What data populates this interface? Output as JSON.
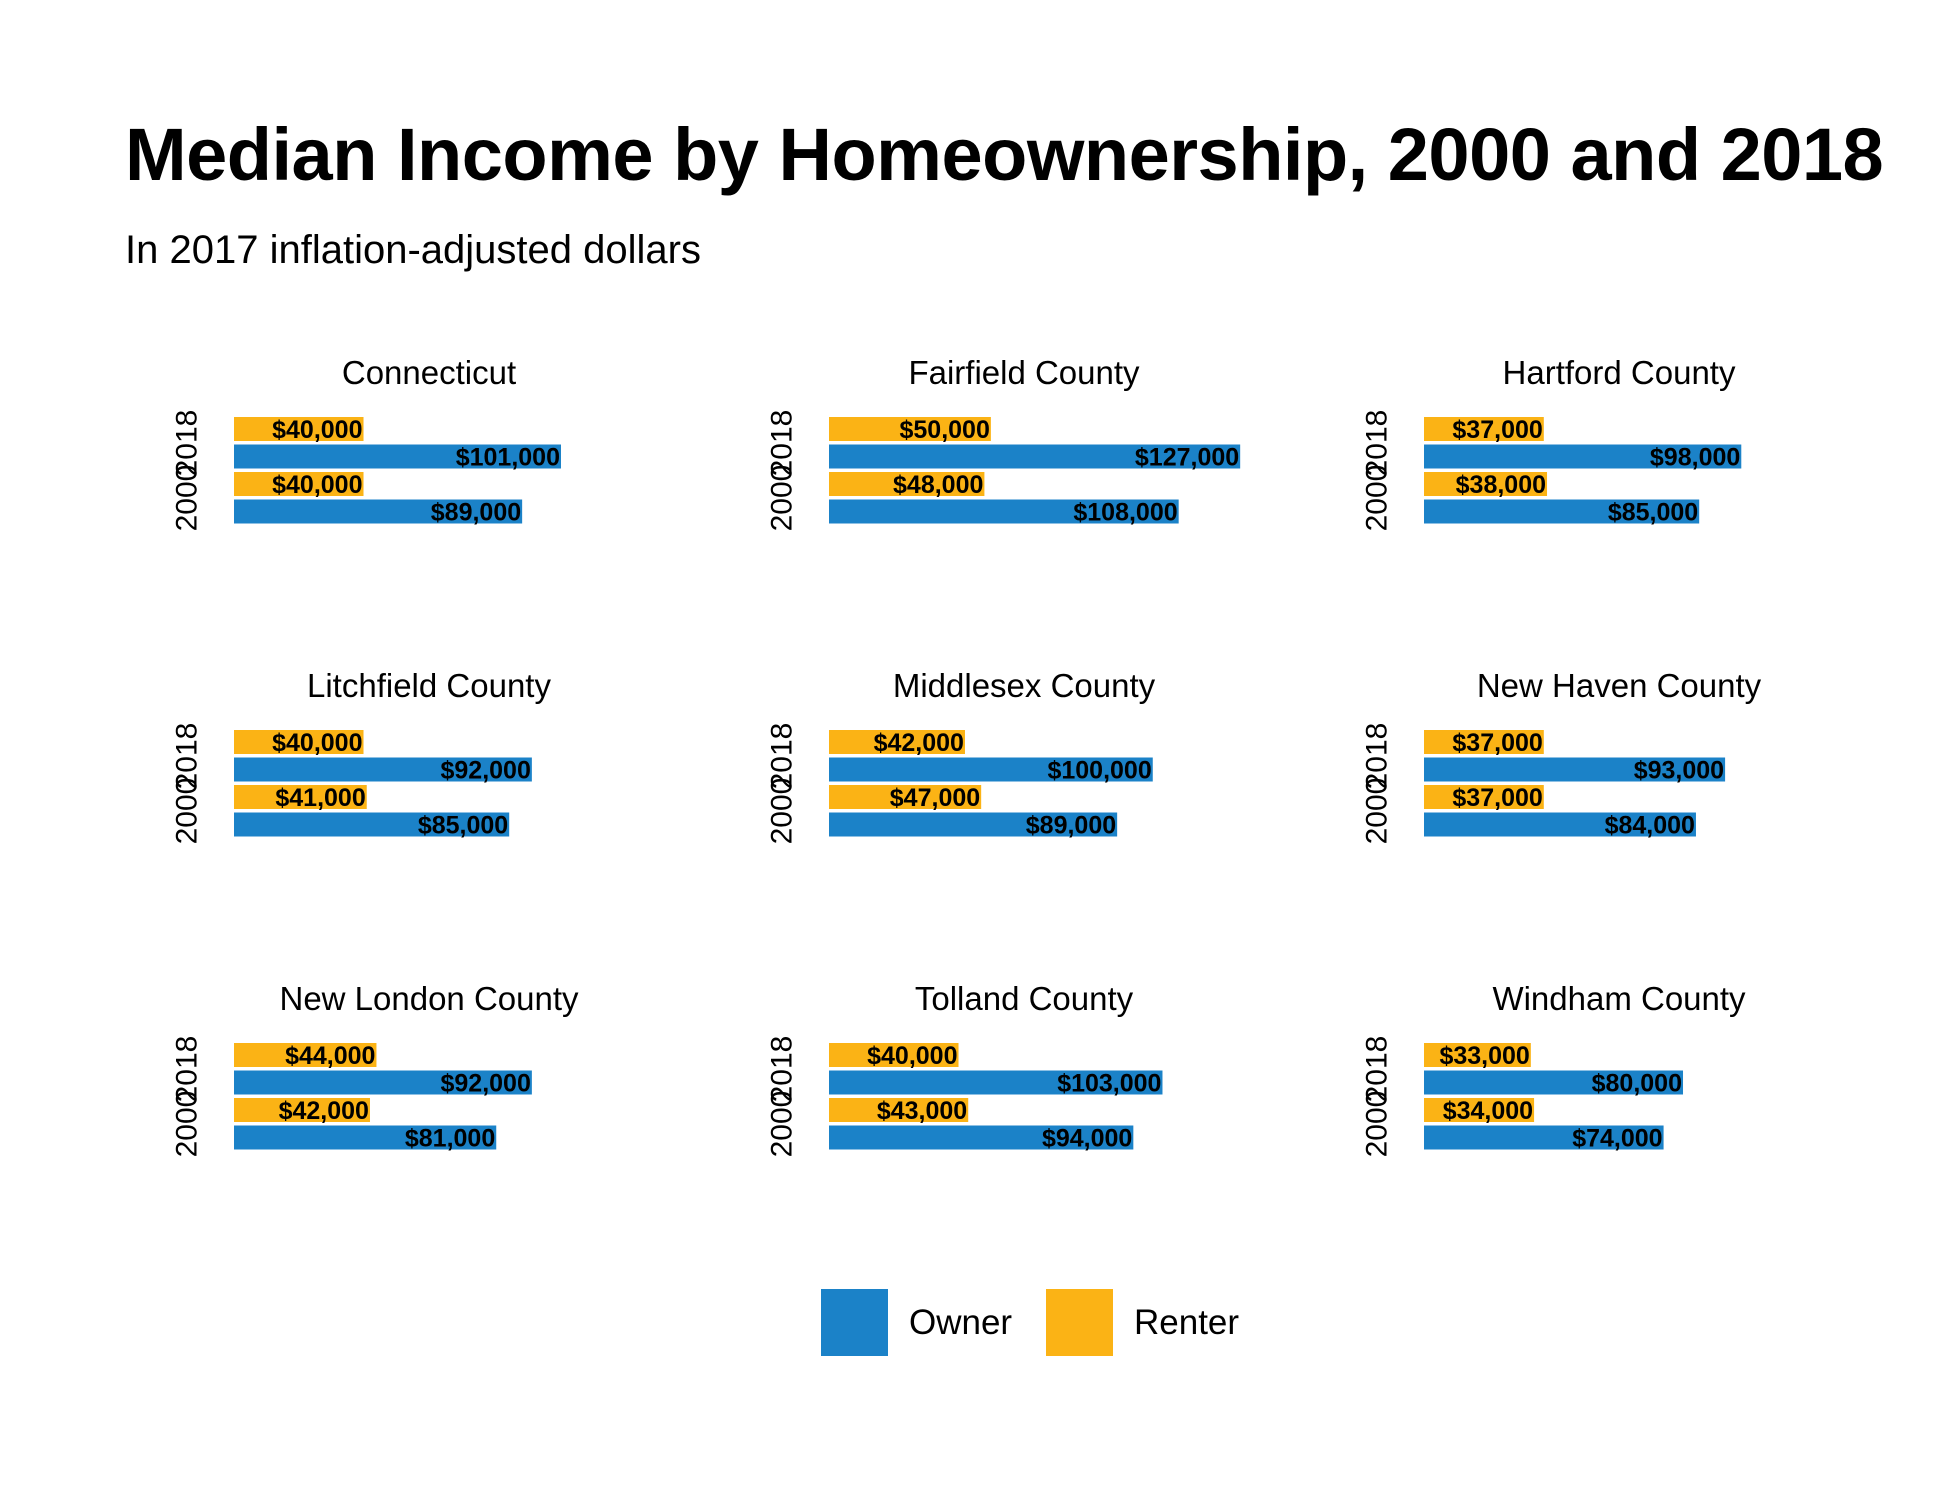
{
  "title": "Median Income by Homeownership, 2000 and 2018",
  "subtitle": "In 2017 inflation-adjusted dollars",
  "colors": {
    "owner": "#1b82c8",
    "renter": "#fbb315"
  },
  "legend": [
    {
      "label": "Owner",
      "color_key": "owner"
    },
    {
      "label": "Renter",
      "color_key": "renter"
    }
  ],
  "chart_data": {
    "type": "bar",
    "orientation": "horizontal",
    "y_categories": [
      "2018",
      "2000"
    ],
    "series_names": [
      "Owner",
      "Renter"
    ],
    "legend_position": "bottom",
    "grid": false,
    "panels": [
      {
        "name": "Connecticut",
        "values": {
          "2018": {
            "Renter": 40000,
            "Owner": 101000
          },
          "2000": {
            "Renter": 40000,
            "Owner": 89000
          }
        },
        "labels": {
          "2018": {
            "Renter": "$40,000",
            "Owner": "$101,000"
          },
          "2000": {
            "Renter": "$40,000",
            "Owner": "$89,000"
          }
        }
      },
      {
        "name": "Fairfield County",
        "values": {
          "2018": {
            "Renter": 50000,
            "Owner": 127000
          },
          "2000": {
            "Renter": 48000,
            "Owner": 108000
          }
        },
        "labels": {
          "2018": {
            "Renter": "$50,000",
            "Owner": "$127,000"
          },
          "2000": {
            "Renter": "$48,000",
            "Owner": "$108,000"
          }
        }
      },
      {
        "name": "Hartford County",
        "values": {
          "2018": {
            "Renter": 37000,
            "Owner": 98000
          },
          "2000": {
            "Renter": 38000,
            "Owner": 85000
          }
        },
        "labels": {
          "2018": {
            "Renter": "$37,000",
            "Owner": "$98,000"
          },
          "2000": {
            "Renter": "$38,000",
            "Owner": "$85,000"
          }
        }
      },
      {
        "name": "Litchfield County",
        "values": {
          "2018": {
            "Renter": 40000,
            "Owner": 92000
          },
          "2000": {
            "Renter": 41000,
            "Owner": 85000
          }
        },
        "labels": {
          "2018": {
            "Renter": "$40,000",
            "Owner": "$92,000"
          },
          "2000": {
            "Renter": "$41,000",
            "Owner": "$85,000"
          }
        }
      },
      {
        "name": "Middlesex County",
        "values": {
          "2018": {
            "Renter": 42000,
            "Owner": 100000
          },
          "2000": {
            "Renter": 47000,
            "Owner": 89000
          }
        },
        "labels": {
          "2018": {
            "Renter": "$42,000",
            "Owner": "$100,000"
          },
          "2000": {
            "Renter": "$47,000",
            "Owner": "$89,000"
          }
        }
      },
      {
        "name": "New Haven County",
        "values": {
          "2018": {
            "Renter": 37000,
            "Owner": 93000
          },
          "2000": {
            "Renter": 37000,
            "Owner": 84000
          }
        },
        "labels": {
          "2018": {
            "Renter": "$37,000",
            "Owner": "$93,000"
          },
          "2000": {
            "Renter": "$37,000",
            "Owner": "$84,000"
          }
        }
      },
      {
        "name": "New London County",
        "values": {
          "2018": {
            "Renter": 44000,
            "Owner": 92000
          },
          "2000": {
            "Renter": 42000,
            "Owner": 81000
          }
        },
        "labels": {
          "2018": {
            "Renter": "$44,000",
            "Owner": "$92,000"
          },
          "2000": {
            "Renter": "$42,000",
            "Owner": "$81,000"
          }
        }
      },
      {
        "name": "Tolland County",
        "values": {
          "2018": {
            "Renter": 40000,
            "Owner": 103000
          },
          "2000": {
            "Renter": 43000,
            "Owner": 94000
          }
        },
        "labels": {
          "2018": {
            "Renter": "$40,000",
            "Owner": "$103,000"
          },
          "2000": {
            "Renter": "$43,000",
            "Owner": "$94,000"
          }
        }
      },
      {
        "name": "Windham County",
        "values": {
          "2018": {
            "Renter": 33000,
            "Owner": 80000
          },
          "2000": {
            "Renter": 34000,
            "Owner": 74000
          }
        },
        "labels": {
          "2018": {
            "Renter": "$33,000",
            "Owner": "$80,000"
          },
          "2000": {
            "Renter": "$34,000",
            "Owner": "$74,000"
          }
        }
      }
    ]
  }
}
